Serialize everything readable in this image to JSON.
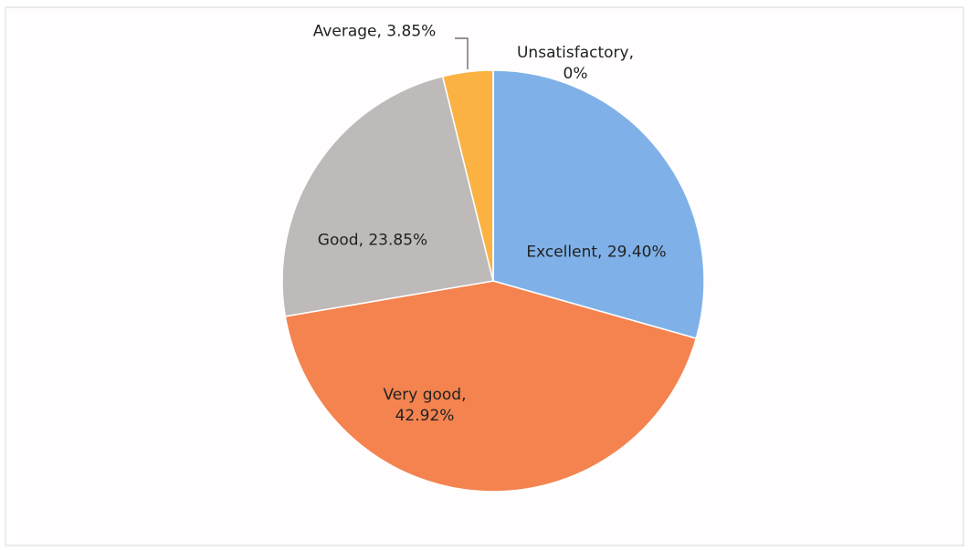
{
  "chart_data": {
    "type": "pie",
    "categories": [
      "Excellent",
      "Very good",
      "Good",
      "Average",
      "Unsatisfactory"
    ],
    "values": [
      29.4,
      42.92,
      23.85,
      3.85,
      0
    ],
    "value_labels": [
      "Excellent, 29.40%",
      "Very good,\n42.92%",
      "Good, 23.85%",
      "Average, 3.85%",
      "Unsatisfactory,\n0%"
    ],
    "colors": [
      "#7fb1e8",
      "#f4834f",
      "#bebab9",
      "#fbb243",
      "#6a9a3f"
    ]
  }
}
